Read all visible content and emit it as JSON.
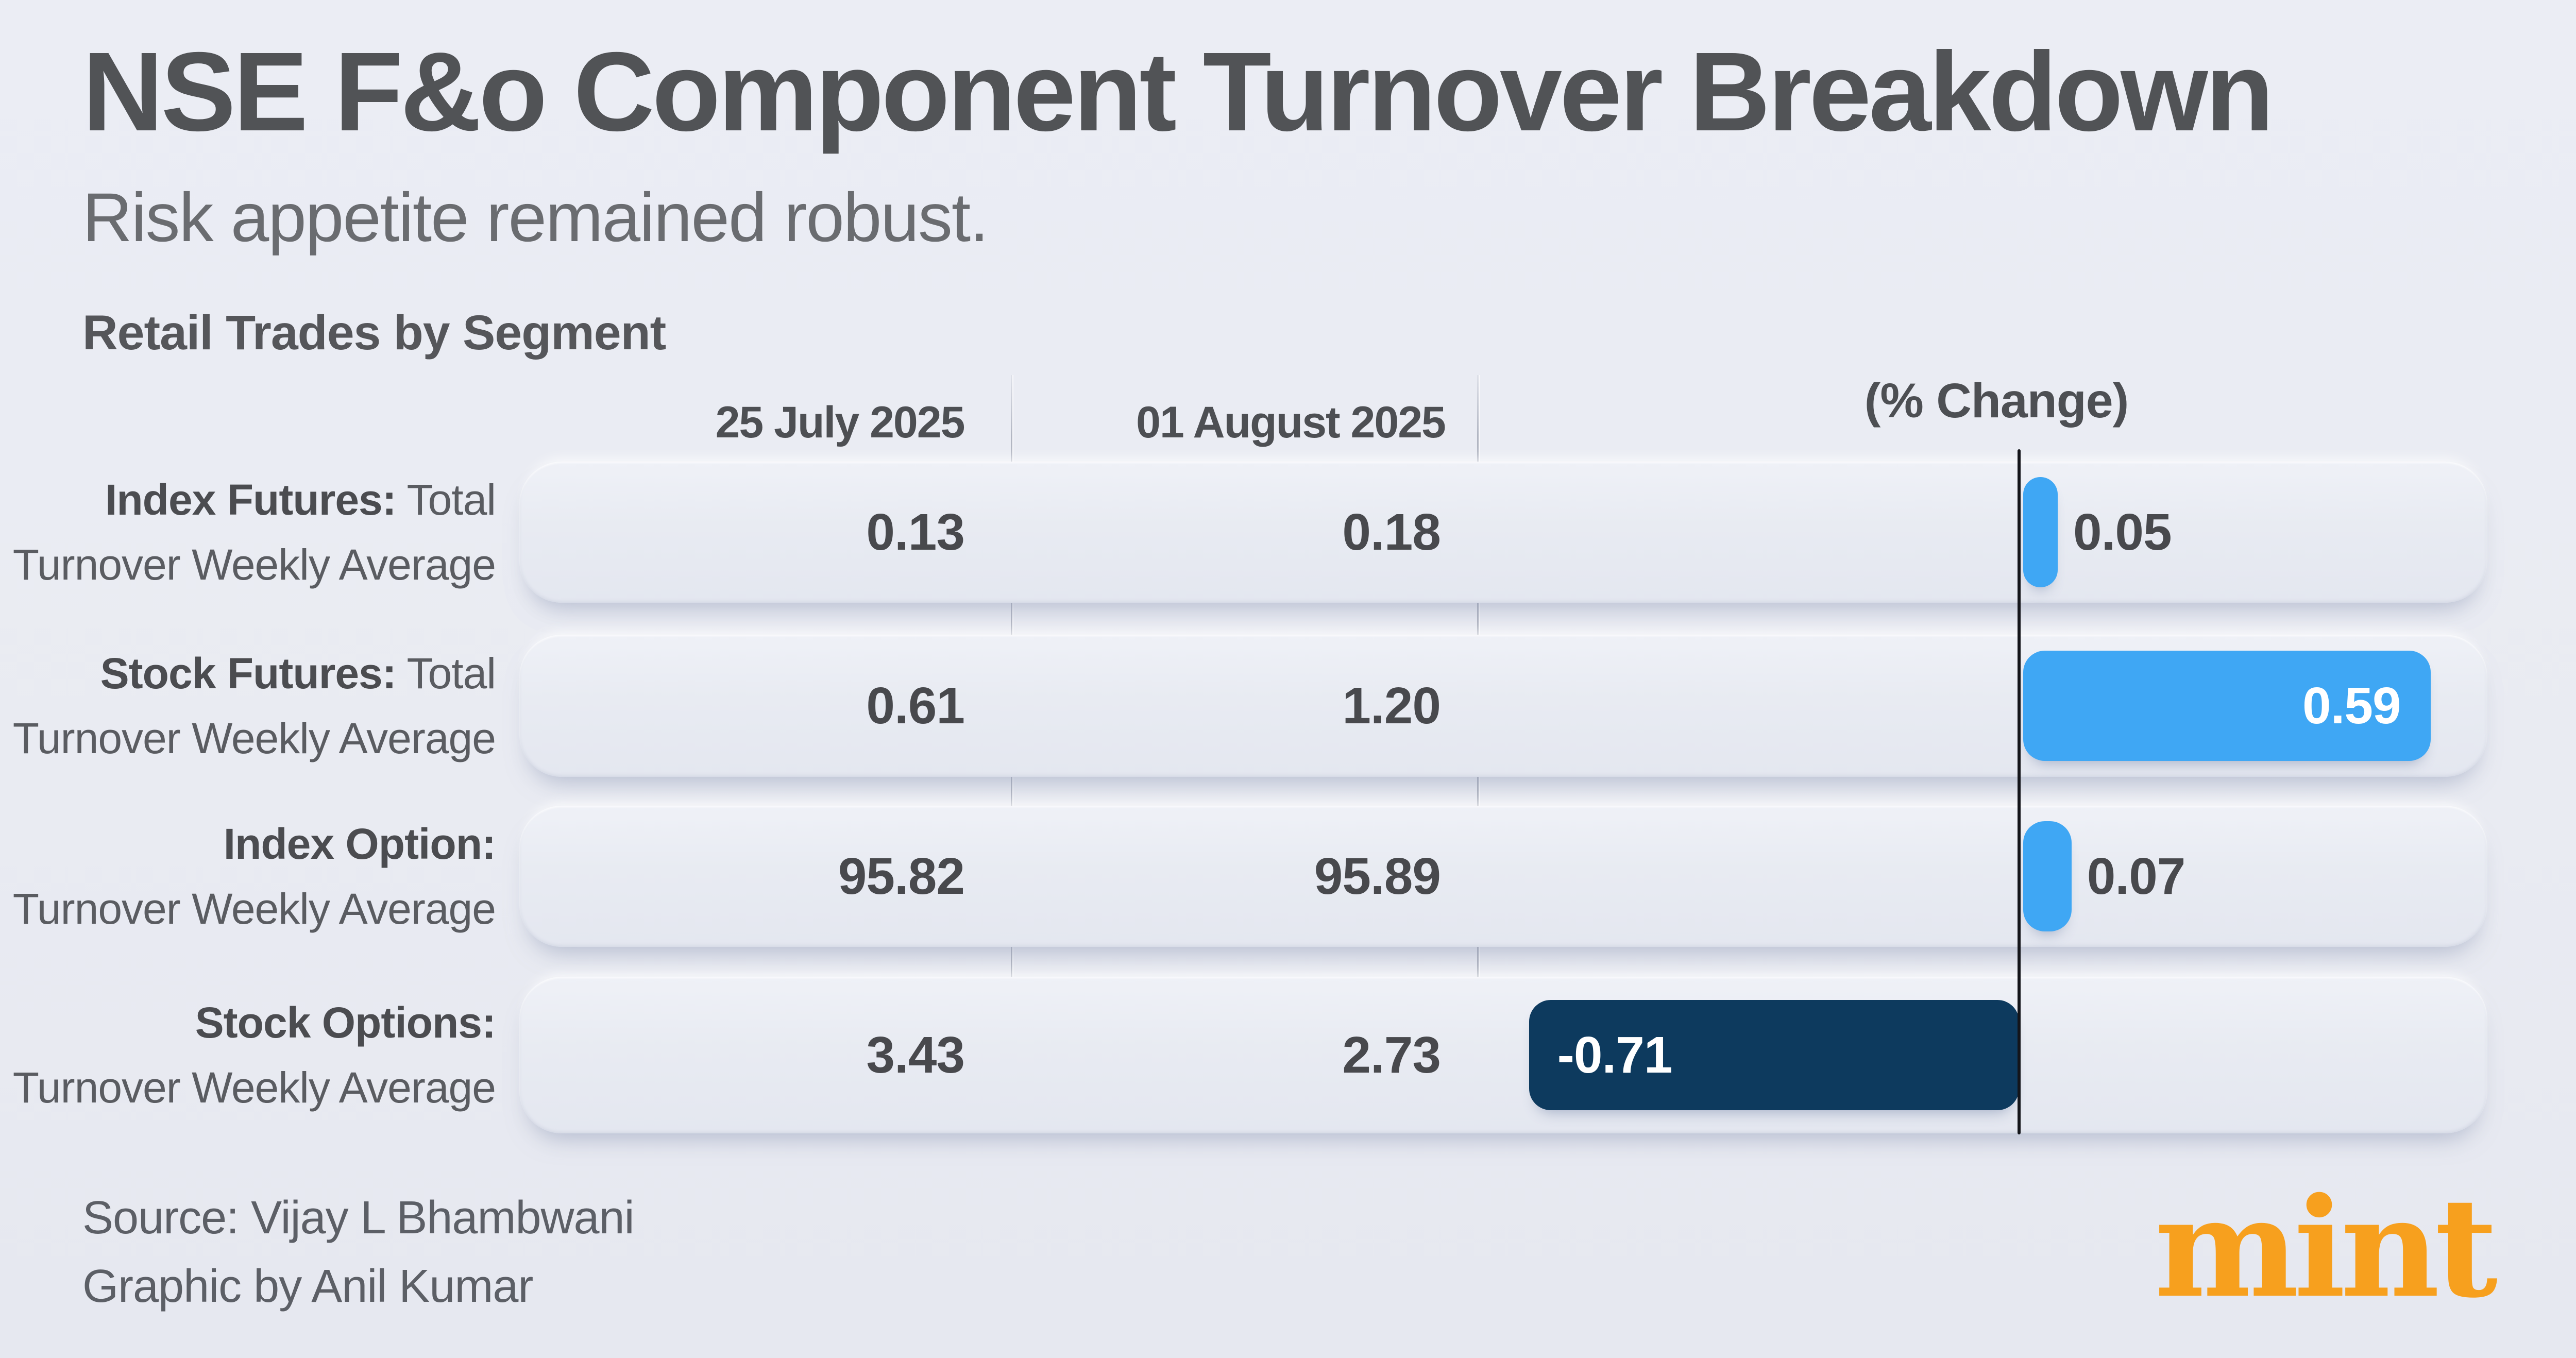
{
  "header": {
    "title": "NSE F&o Component Turnover Breakdown",
    "subtitle": "Risk appetite remained robust.",
    "section_label": "Retail Trades by Segment"
  },
  "columns": {
    "col1": "25 July 2025",
    "col2": "01 August 2025",
    "change": "(%  Change)"
  },
  "rows": [
    {
      "label_bold": "Index Futures:",
      "label_rest": " Total",
      "label_line2": "Turnover Weekly Average",
      "col1": "0.13",
      "col2": "0.18",
      "change": 0.05,
      "change_label": "0.05"
    },
    {
      "label_bold": "Stock Futures:",
      "label_rest": " Total",
      "label_line2": "Turnover Weekly Average",
      "col1": "0.61",
      "col2": "1.20",
      "change": 0.59,
      "change_label": "0.59"
    },
    {
      "label_bold": "Index Option:",
      "label_rest": "",
      "label_line2": "Turnover Weekly Average",
      "col1": "95.82",
      "col2": "95.89",
      "change": 0.07,
      "change_label": "0.07"
    },
    {
      "label_bold": "Stock Options:",
      "label_rest": "",
      "label_line2": "Turnover Weekly Average",
      "col1": "3.43",
      "col2": "2.73",
      "change": -0.71,
      "change_label": "-0.71"
    }
  ],
  "chart_data": {
    "type": "bar",
    "title": "NSE F&o Component Turnover Breakdown",
    "subtitle": "Risk appetite remained robust.",
    "section": "Retail Trades by Segment",
    "categories": [
      "Index Futures: Total Turnover Weekly Average",
      "Stock Futures: Total Turnover Weekly Average",
      "Index Option: Turnover Weekly Average",
      "Stock Options: Turnover Weekly Average"
    ],
    "series": [
      {
        "name": "25 July 2025",
        "values": [
          0.13,
          0.61,
          95.82,
          3.43
        ]
      },
      {
        "name": "01 August 2025",
        "values": [
          0.18,
          1.2,
          95.89,
          2.73
        ]
      },
      {
        "name": "(% Change)",
        "values": [
          0.05,
          0.59,
          0.07,
          -0.71
        ]
      }
    ],
    "xlabel": "(% Change)",
    "ylabel": "",
    "orientation": "horizontal",
    "axis_zero_line": true,
    "grid": false,
    "legend_position": "column-headers"
  },
  "footer": {
    "source": "Source: Vijay L Bhambwani",
    "credit": "Graphic by Anil Kumar",
    "logo_text": "mint"
  },
  "colors": {
    "positive_bar": "#3FA7F4",
    "negative_bar": "#0D3A5E",
    "axis": "#14151A",
    "accent_logo": "#F7A01E",
    "text_dark": "#48494D",
    "bar_label_light": "#FFFFFF"
  }
}
